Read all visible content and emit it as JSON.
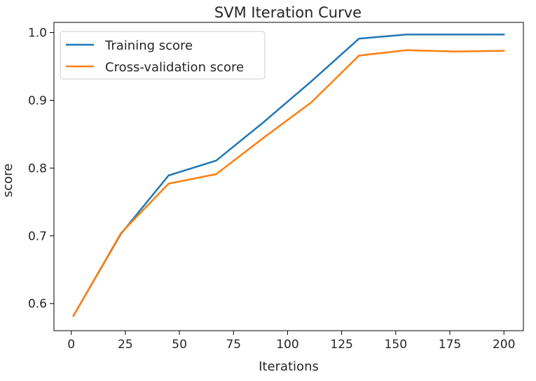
{
  "chart_data": {
    "type": "line",
    "title": "SVM Iteration Curve",
    "xlabel": "Iterations",
    "ylabel": "score",
    "x": [
      1,
      23,
      45,
      67,
      89,
      111,
      133,
      155,
      177,
      200
    ],
    "xlim": [
      -8,
      209
    ],
    "ylim": [
      0.56,
      1.015
    ],
    "xticks": [
      0,
      25,
      50,
      75,
      100,
      125,
      150,
      175,
      200
    ],
    "xtick_labels": [
      "0",
      "25",
      "50",
      "75",
      "100",
      "125",
      "150",
      "175",
      "200"
    ],
    "yticks": [
      0.6,
      0.7,
      0.8,
      0.9,
      1.0
    ],
    "ytick_labels": [
      "0.6",
      "0.7",
      "0.8",
      "0.9",
      "1.0"
    ],
    "grid": false,
    "legend_position": "upper-left",
    "series": [
      {
        "name": "Training score",
        "color": "#1f77b4",
        "values": [
          0.582,
          0.703,
          0.789,
          0.811,
          0.868,
          0.928,
          0.991,
          0.997,
          0.997,
          0.997
        ]
      },
      {
        "name": "Cross-validation score",
        "color": "#ff7f0e",
        "values": [
          0.582,
          0.704,
          0.777,
          0.791,
          0.845,
          0.897,
          0.966,
          0.974,
          0.972,
          0.973
        ]
      }
    ]
  }
}
